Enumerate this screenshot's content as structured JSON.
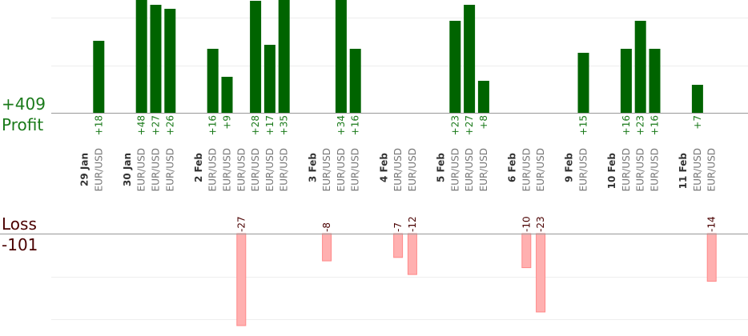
{
  "summary": {
    "profit_total": "+409",
    "profit_label": "Profit",
    "loss_label": "Loss",
    "loss_total": "-101"
  },
  "colors": {
    "profit_text": "#1a7a1a",
    "loss_text": "#4a0000",
    "profit_bar": "#006400",
    "loss_bar": "#ffb0b0"
  },
  "chart_data": {
    "type": "bar",
    "profit_scale_max": 24,
    "loss_scale_max": 27,
    "columns": [
      {
        "date": "29 Jan"
      },
      {
        "pair": "EUR/USD",
        "value": 18
      },
      {},
      {
        "date": "30 Jan"
      },
      {
        "pair": "EUR/USD",
        "value": 48
      },
      {
        "pair": "EUR/USD",
        "value": 27
      },
      {
        "pair": "EUR/USD",
        "value": 26
      },
      {},
      {
        "date": "2 Feb"
      },
      {
        "pair": "EUR/USD",
        "value": 16
      },
      {
        "pair": "EUR/USD",
        "value": 9
      },
      {
        "pair": "EUR/USD",
        "value": -27
      },
      {
        "pair": "EUR/USD",
        "value": 28
      },
      {
        "pair": "EUR/USD",
        "value": 17
      },
      {
        "pair": "EUR/USD",
        "value": 35
      },
      {},
      {
        "date": "3 Feb"
      },
      {
        "pair": "EUR/USD",
        "value": -8
      },
      {
        "pair": "EUR/USD",
        "value": 34
      },
      {
        "pair": "EUR/USD",
        "value": 16
      },
      {},
      {
        "date": "4 Feb"
      },
      {
        "pair": "EUR/USD",
        "value": -7
      },
      {
        "pair": "EUR/USD",
        "value": -12
      },
      {},
      {
        "date": "5 Feb"
      },
      {
        "pair": "EUR/USD",
        "value": 23
      },
      {
        "pair": "EUR/USD",
        "value": 27
      },
      {
        "pair": "EUR/USD",
        "value": 8
      },
      {},
      {
        "date": "6 Feb"
      },
      {
        "pair": "EUR/USD",
        "value": -10
      },
      {
        "pair": "EUR/USD",
        "value": -23
      },
      {},
      {
        "date": "9 Feb"
      },
      {
        "pair": "EUR/USD",
        "value": 15
      },
      {},
      {
        "date": "10 Feb"
      },
      {
        "pair": "EUR/USD",
        "value": 16
      },
      {
        "pair": "EUR/USD",
        "value": 23
      },
      {
        "pair": "EUR/USD",
        "value": 16
      },
      {},
      {
        "date": "11 Feb"
      },
      {
        "pair": "EUR/USD",
        "value": 7
      },
      {
        "pair": "EUR/USD",
        "value": -14
      }
    ]
  }
}
